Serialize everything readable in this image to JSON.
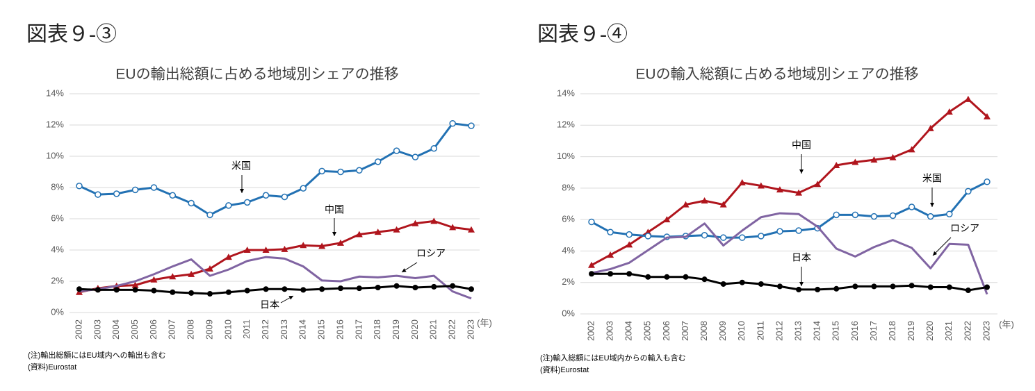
{
  "chart_data": [
    {
      "type": "line",
      "figure_label": "図表９-③",
      "title": "EUの輸出総額に占める地域別シェアの推移",
      "x_label": "(年)",
      "notes": [
        "(注)輸出総額にはEU域内への輸出も含む",
        "(資料)Eurostat"
      ],
      "categories": [
        "2002",
        "2003",
        "2004",
        "2005",
        "2006",
        "2007",
        "2008",
        "2009",
        "2010",
        "2011",
        "2012",
        "2013",
        "2014",
        "2015",
        "2016",
        "2017",
        "2018",
        "2019",
        "2020",
        "2021",
        "2022",
        "2023"
      ],
      "ylim": [
        0,
        14
      ],
      "yticks": [
        {
          "value": 0,
          "label": "0%"
        },
        {
          "value": 2,
          "label": "2%"
        },
        {
          "value": 4,
          "label": "4%"
        },
        {
          "value": 6,
          "label": "6%"
        },
        {
          "value": 8,
          "label": "8%"
        },
        {
          "value": 10,
          "label": "10%"
        },
        {
          "value": 12,
          "label": "12%"
        },
        {
          "value": 14,
          "label": "14%"
        }
      ],
      "grid": true,
      "series": [
        {
          "name": "米国",
          "color": "#2271b3",
          "marker": "circle-open",
          "values": [
            8.1,
            7.55,
            7.6,
            7.85,
            8.0,
            7.5,
            7.0,
            6.25,
            6.85,
            7.05,
            7.5,
            7.4,
            7.95,
            9.05,
            9.0,
            9.1,
            9.65,
            10.35,
            9.95,
            10.5,
            12.1,
            11.95
          ]
        },
        {
          "name": "中国",
          "color": "#b0151d",
          "marker": "triangle",
          "values": [
            1.3,
            1.55,
            1.7,
            1.75,
            2.1,
            2.3,
            2.45,
            2.8,
            3.55,
            4.0,
            4.0,
            4.05,
            4.3,
            4.25,
            4.45,
            5.0,
            5.15,
            5.3,
            5.7,
            5.85,
            5.45,
            5.3
          ]
        },
        {
          "name": "ロシア",
          "color": "#8064a2",
          "marker": "none",
          "values": [
            1.35,
            1.5,
            1.7,
            2.0,
            2.45,
            2.95,
            3.4,
            2.35,
            2.75,
            3.3,
            3.55,
            3.45,
            2.95,
            2.05,
            2.0,
            2.3,
            2.25,
            2.35,
            2.2,
            2.35,
            1.35,
            0.9
          ]
        },
        {
          "name": "日本",
          "color": "#000000",
          "marker": "circle",
          "values": [
            1.5,
            1.45,
            1.45,
            1.45,
            1.4,
            1.3,
            1.25,
            1.2,
            1.3,
            1.4,
            1.5,
            1.5,
            1.45,
            1.5,
            1.55,
            1.55,
            1.6,
            1.7,
            1.6,
            1.65,
            1.7,
            1.5
          ]
        }
      ]
    },
    {
      "type": "line",
      "figure_label": "図表９-④",
      "title": "EUの輸入総額に占める地域別シェアの推移",
      "x_label": "(年)",
      "notes": [
        "(注)輸入総額にはEU域内からの輸入も含む",
        "(資料)Eurostat"
      ],
      "categories": [
        "2002",
        "2003",
        "2004",
        "2005",
        "2006",
        "2007",
        "2008",
        "2009",
        "2010",
        "2011",
        "2012",
        "2013",
        "2014",
        "2015",
        "2016",
        "2017",
        "2018",
        "2019",
        "2020",
        "2021",
        "2022",
        "2023"
      ],
      "ylim": [
        0,
        14
      ],
      "yticks": [
        {
          "value": 0,
          "label": "0%"
        },
        {
          "value": 2,
          "label": "2%"
        },
        {
          "value": 4,
          "label": "4%"
        },
        {
          "value": 6,
          "label": "6%"
        },
        {
          "value": 8,
          "label": "8%"
        },
        {
          "value": 10,
          "label": "10%"
        },
        {
          "value": 12,
          "label": "12%"
        },
        {
          "value": 14,
          "label": "14%"
        }
      ],
      "grid": true,
      "series": [
        {
          "name": "中国",
          "color": "#b0151d",
          "marker": "triangle",
          "values": [
            3.1,
            3.75,
            4.4,
            5.2,
            6.0,
            6.95,
            7.2,
            6.95,
            8.35,
            8.15,
            7.9,
            7.7,
            8.25,
            9.45,
            9.65,
            9.8,
            9.95,
            10.45,
            11.8,
            12.85,
            13.65,
            12.55
          ]
        },
        {
          "name": "米国",
          "color": "#2271b3",
          "marker": "circle-open",
          "values": [
            5.85,
            5.2,
            5.05,
            4.95,
            4.9,
            4.95,
            5.0,
            4.85,
            4.85,
            4.95,
            5.25,
            5.3,
            5.45,
            6.3,
            6.3,
            6.2,
            6.25,
            6.8,
            6.2,
            6.35,
            7.8,
            8.4
          ]
        },
        {
          "name": "ロシア",
          "color": "#8064a2",
          "marker": "none",
          "values": [
            2.6,
            2.85,
            3.25,
            4.05,
            4.85,
            4.9,
            5.75,
            4.35,
            5.3,
            6.15,
            6.4,
            6.35,
            5.55,
            4.15,
            3.65,
            4.25,
            4.7,
            4.2,
            2.9,
            4.45,
            4.4,
            1.25
          ]
        },
        {
          "name": "日本",
          "color": "#000000",
          "marker": "circle",
          "values": [
            2.55,
            2.55,
            2.55,
            2.35,
            2.35,
            2.35,
            2.2,
            1.9,
            2.0,
            1.9,
            1.75,
            1.55,
            1.55,
            1.6,
            1.75,
            1.75,
            1.75,
            1.8,
            1.7,
            1.7,
            1.5,
            1.7
          ]
        }
      ]
    }
  ]
}
